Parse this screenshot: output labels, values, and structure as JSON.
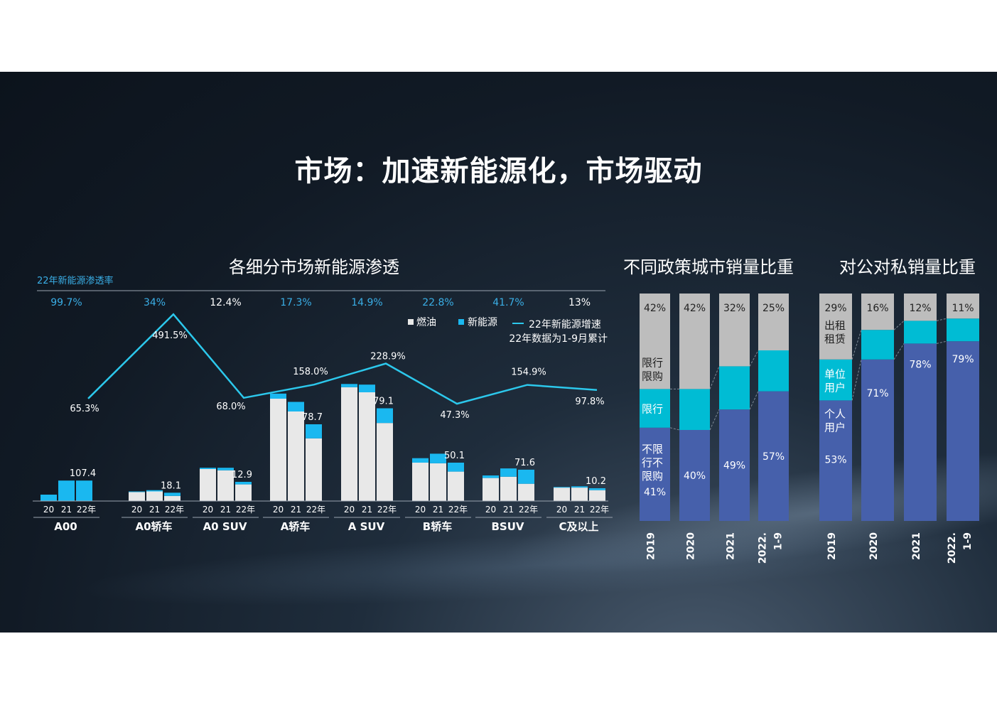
{
  "title": "市场：加速新能源化，市场驱动",
  "colors": {
    "fuel": "#e8e8e8",
    "nev": "#1ab8f0",
    "line": "#2cc8ec",
    "restricted_buy": "#bdbdbd",
    "restricted_drive": "#00bcd4",
    "unrestricted": "#4660ab",
    "white": "#ffffff"
  },
  "chart_data": [
    {
      "type": "bar",
      "title": "各细分市场新能源渗透",
      "penetration_label": "22年新能源渗透率",
      "note": "22年数据为1-9月累计",
      "legend": [
        "燃油",
        "新能源",
        "22年新能源增速"
      ],
      "year_labels": [
        "20",
        "21",
        "22年"
      ],
      "categories": [
        "A00",
        "A0轿车",
        "A0 SUV",
        "A轿车",
        "A SUV",
        "B轿车",
        "BSUV",
        "C及以上"
      ],
      "penetration": [
        "99.7%",
        "34%",
        "12.4%",
        "17.3%",
        "14.9%",
        "22.8%",
        "41.7%",
        "13%"
      ],
      "value_labels": [
        "107.4",
        "18.1",
        "12.9",
        "78.7",
        "79.1",
        "50.1",
        "71.6",
        "10.2"
      ],
      "stacks": [
        [
          [
            0,
            10
          ],
          [
            0,
            32
          ],
          [
            0,
            32
          ]
        ],
        [
          [
            14,
            1
          ],
          [
            15,
            2
          ],
          [
            8,
            5
          ]
        ],
        [
          [
            50,
            2
          ],
          [
            48,
            4
          ],
          [
            26,
            4
          ]
        ],
        [
          [
            160,
            8
          ],
          [
            140,
            15
          ],
          [
            98,
            22
          ]
        ],
        [
          [
            178,
            5
          ],
          [
            170,
            12
          ],
          [
            122,
            23
          ]
        ],
        [
          [
            60,
            7
          ],
          [
            59,
            15
          ],
          [
            46,
            14
          ]
        ],
        [
          [
            36,
            4
          ],
          [
            38,
            13
          ],
          [
            27,
            22
          ]
        ],
        [
          [
            21,
            1
          ],
          [
            21,
            2
          ],
          [
            17,
            3
          ]
        ]
      ],
      "growth_line": {
        "name": "22年新能源增速",
        "values": [
          65.3,
          491.5,
          68.0,
          158.0,
          228.9,
          47.3,
          154.9,
          97.8
        ],
        "labels": [
          "65.3%",
          "491.5%",
          "68.0%",
          "158.0%",
          "228.9%",
          "47.3%",
          "154.9%",
          "97.8%"
        ]
      }
    },
    {
      "type": "bar",
      "stacked": "100%",
      "title": "不同政策城市销量比重",
      "categories": [
        "2019",
        "2020",
        "2021",
        "2022.\n1-9"
      ],
      "series": [
        {
          "name": "不限行不限购",
          "values": [
            41,
            40,
            49,
            57
          ],
          "labels": [
            "41%",
            "40%",
            "49%",
            "57%"
          ]
        },
        {
          "name": "限行",
          "values": [
            17,
            18,
            19,
            18
          ],
          "labels": [
            "",
            "",
            "",
            ""
          ]
        },
        {
          "name": "限行限购",
          "values": [
            42,
            42,
            32,
            25
          ],
          "labels": [
            "42%",
            "42%",
            "32%",
            "25%"
          ]
        }
      ],
      "in_bar_names": [
        "不限\n行不\n限购",
        "限行",
        "限行\n限购"
      ]
    },
    {
      "type": "bar",
      "stacked": "100%",
      "title": "对公对私销量比重",
      "categories": [
        "2019",
        "2020",
        "2021",
        "2022.\n1-9"
      ],
      "series": [
        {
          "name": "个人用户",
          "values": [
            53,
            71,
            78,
            79
          ],
          "labels": [
            "53%",
            "71%",
            "78%",
            "79%"
          ]
        },
        {
          "name": "单位用户",
          "values": [
            18,
            13,
            10,
            10
          ],
          "labels": [
            "",
            "",
            "",
            ""
          ]
        },
        {
          "name": "出租租赁",
          "values": [
            29,
            16,
            12,
            11
          ],
          "labels": [
            "29%",
            "16%",
            "12%",
            "11%"
          ]
        }
      ],
      "in_bar_names": [
        "个人\n用户",
        "单位\n用户",
        "出租\n租赁"
      ]
    }
  ]
}
